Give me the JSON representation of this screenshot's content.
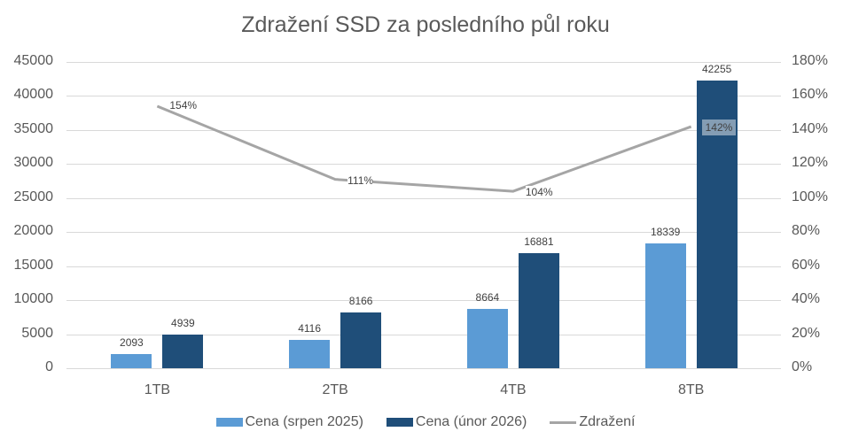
{
  "chart_data": {
    "type": "bar",
    "title": "Zdražení SSD za posledního půl roku",
    "categories": [
      "1TB",
      "2TB",
      "4TB",
      "8TB"
    ],
    "series": [
      {
        "name": "Cena (srpen 2025)",
        "type": "bar",
        "axis": "left",
        "color": "#5b9bd5",
        "values": [
          2093,
          4116,
          8664,
          18339
        ]
      },
      {
        "name": "Cena (únor 2026)",
        "type": "bar",
        "axis": "left",
        "color": "#1f4e79",
        "values": [
          4939,
          8166,
          16881,
          42255
        ]
      },
      {
        "name": "Zdražení",
        "type": "line",
        "axis": "right",
        "color": "#a5a5a5",
        "values": [
          1.54,
          1.11,
          1.04,
          1.42
        ],
        "labels": [
          "154%",
          "111%",
          "104%",
          "142%"
        ]
      }
    ],
    "left_axis": {
      "ylim": [
        0,
        45000
      ],
      "ticks": [
        "0",
        "5000",
        "10000",
        "15000",
        "20000",
        "25000",
        "30000",
        "35000",
        "40000",
        "45000"
      ]
    },
    "right_axis": {
      "ylim": [
        0,
        1.8
      ],
      "ticks": [
        "0%",
        "20%",
        "40%",
        "60%",
        "80%",
        "100%",
        "120%",
        "140%",
        "160%",
        "180%"
      ]
    },
    "xlabel": "",
    "ylabel": "",
    "grid": true,
    "legend_position": "bottom"
  },
  "legend": [
    "Cena (srpen 2025)",
    "Cena (únor 2026)",
    "Zdražení"
  ]
}
